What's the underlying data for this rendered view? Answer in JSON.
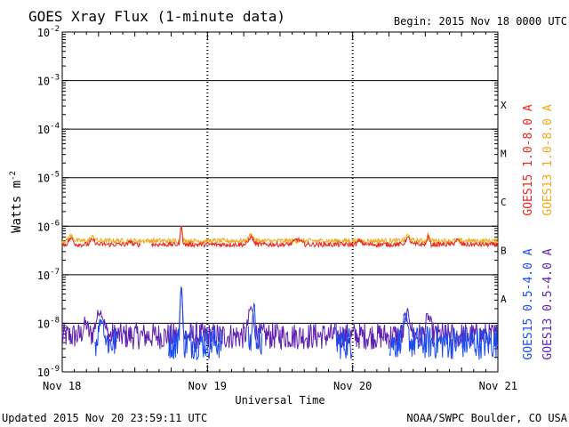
{
  "chart_data": {
    "type": "line",
    "title": "GOES Xray Flux (1-minute data)",
    "begin_label": "Begin:  2015 Nov 18 0000 UTC",
    "xlabel": "Universal Time",
    "ylabel": "Watts m",
    "ylabel_sup": "-2",
    "y_scale": "log",
    "ylim": [
      1e-09,
      0.01
    ],
    "y_ticks": [
      {
        "base": "10",
        "exp": "-2"
      },
      {
        "base": "10",
        "exp": "-3"
      },
      {
        "base": "10",
        "exp": "-4"
      },
      {
        "base": "10",
        "exp": "-5"
      },
      {
        "base": "10",
        "exp": "-6"
      },
      {
        "base": "10",
        "exp": "-7"
      },
      {
        "base": "10",
        "exp": "-8"
      },
      {
        "base": "10",
        "exp": "-9"
      }
    ],
    "x_ticks": [
      "Nov 18",
      "Nov 19",
      "Nov 20",
      "Nov 21"
    ],
    "xlim_days": [
      0,
      3
    ],
    "flare_classes": [
      "X",
      "M",
      "C",
      "B",
      "A"
    ],
    "grid": true,
    "legend": [
      {
        "label": "GOES15 1.0-8.0 A",
        "color": "#e8261e"
      },
      {
        "label": "GOES13 1.0-8.0 A",
        "color": "#f0a818"
      },
      {
        "label": "GOES15 0.5-4.0 A",
        "color": "#1c4cf0"
      },
      {
        "label": "GOES13 0.5-4.0 A",
        "color": "#6020b0"
      }
    ],
    "series": [
      {
        "name": "GOES15 1.0-8.0 A",
        "color": "#e8261e",
        "baseline": 4.2e-07,
        "noise": 0.05,
        "gaps": [
          [
            0.54,
            0.61
          ]
        ],
        "peaks": [
          [
            0.06,
            1.4e-07,
            0.02
          ],
          [
            0.21,
            1e-07,
            0.02
          ],
          [
            0.47,
            8e-08,
            0.01
          ],
          [
            0.82,
            6e-07,
            0.008
          ],
          [
            1.3,
            1.8e-07,
            0.02
          ],
          [
            1.62,
            1.2e-07,
            0.03
          ],
          [
            2.05,
            8e-08,
            0.02
          ],
          [
            2.38,
            1.6e-07,
            0.02
          ],
          [
            2.52,
            2e-07,
            0.01
          ],
          [
            2.72,
            1e-07,
            0.02
          ]
        ]
      },
      {
        "name": "GOES13 1.0-8.0 A",
        "color": "#f0a818",
        "baseline": 5e-07,
        "noise": 0.05,
        "gaps": [],
        "peaks": [
          [
            0.06,
            1.4e-07,
            0.02
          ],
          [
            0.21,
            1e-07,
            0.02
          ],
          [
            0.82,
            5.5e-07,
            0.008
          ],
          [
            1.3,
            1.8e-07,
            0.02
          ],
          [
            2.38,
            1.5e-07,
            0.02
          ],
          [
            2.52,
            1.8e-07,
            0.01
          ]
        ]
      },
      {
        "name": "GOES15 0.5-4.0 A",
        "color": "#1c4cf0",
        "baseline": 4e-09,
        "noise": 0.35,
        "gaps": [
          [
            0.0,
            0.22
          ],
          [
            0.38,
            0.73
          ],
          [
            1.1,
            1.28
          ],
          [
            1.38,
            1.88
          ],
          [
            2.0,
            2.25
          ]
        ],
        "peaks": [
          [
            0.82,
            5.5e-08,
            0.008
          ],
          [
            0.27,
            8e-09,
            0.02
          ],
          [
            1.32,
            2e-08,
            0.01
          ],
          [
            2.36,
            8e-09,
            0.02
          ]
        ]
      },
      {
        "name": "GOES13 0.5-4.0 A",
        "color": "#6020b0",
        "baseline": 5.5e-09,
        "noise": 0.28,
        "gaps": [],
        "peaks": [
          [
            0.26,
            1.2e-08,
            0.03
          ],
          [
            0.82,
            5e-08,
            0.008
          ],
          [
            0.16,
            4e-09,
            0.02
          ],
          [
            1.3,
            1.5e-08,
            0.02
          ],
          [
            2.38,
            1e-08,
            0.02
          ],
          [
            2.52,
            8e-09,
            0.02
          ]
        ]
      }
    ]
  },
  "footer": {
    "updated": "Updated 2015 Nov 20 23:59:11 UTC",
    "source": "NOAA/SWPC Boulder, CO USA"
  }
}
